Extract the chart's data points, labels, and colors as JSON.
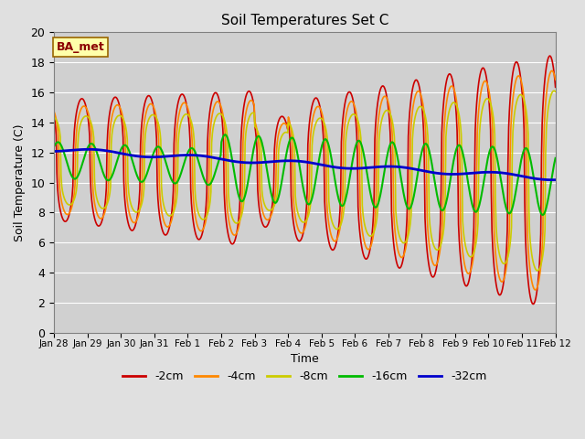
{
  "title": "Soil Temperatures Set C",
  "xlabel": "Time",
  "ylabel": "Soil Temperature (C)",
  "ylim": [
    0,
    20
  ],
  "fig_bg_color": "#e0e0e0",
  "plot_bg_color": "#d0d0d0",
  "label_box_text": "BA_met",
  "xtick_labels": [
    "Jan 28",
    "Jan 29",
    "Jan 30",
    "Jan 31",
    "Feb 1",
    "Feb 2",
    "Feb 3",
    "Feb 4",
    "Feb 5",
    "Feb 6",
    "Feb 7",
    "Feb 8",
    "Feb 9",
    "Feb 10",
    "Feb 11",
    "Feb 12"
  ],
  "series": [
    {
      "label": "-2cm",
      "color": "#cc0000",
      "lw": 1.2
    },
    {
      "label": "-4cm",
      "color": "#ff8800",
      "lw": 1.2
    },
    {
      "label": "-8cm",
      "color": "#cccc00",
      "lw": 1.2
    },
    {
      "label": "-16cm",
      "color": "#00bb00",
      "lw": 1.5
    },
    {
      "label": "-32cm",
      "color": "#0000cc",
      "lw": 2.0
    }
  ],
  "n_days": 15,
  "pts_per_day": 48
}
